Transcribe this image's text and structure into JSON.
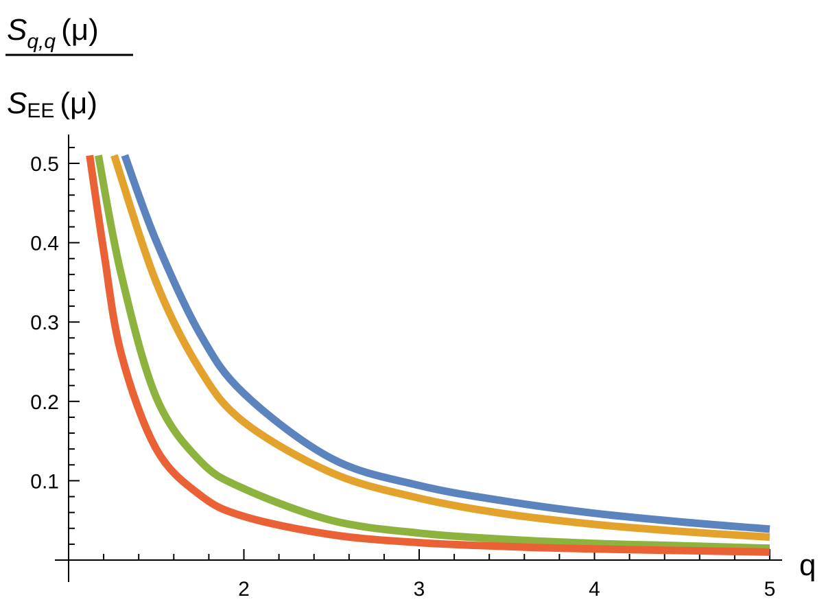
{
  "chart_data": {
    "type": "line",
    "title": "",
    "xlabel": "q",
    "ylabel": {
      "numerator": {
        "symbol": "S",
        "subscript": "q,q",
        "argument": "(μ)"
      },
      "denominator": {
        "symbol": "S",
        "subscript": "EE",
        "argument": "(μ)"
      }
    },
    "xlim": [
      1.0,
      5.0
    ],
    "ylim": [
      0,
      0.53
    ],
    "x_ticks": [
      2,
      3,
      4,
      5
    ],
    "x_tick_labels": [
      "2",
      "3",
      "4",
      "5"
    ],
    "y_ticks": [
      0.1,
      0.2,
      0.3,
      0.4,
      0.5
    ],
    "y_tick_labels": [
      "0.1",
      "0.2",
      "0.3",
      "0.4",
      "0.5"
    ],
    "grid": false,
    "legend": "none",
    "series": [
      {
        "color": "#5b83bd",
        "points": [
          [
            1.32,
            0.51
          ],
          [
            1.5,
            0.402
          ],
          [
            1.75,
            0.285
          ],
          [
            2.0,
            0.21
          ],
          [
            2.5,
            0.128
          ],
          [
            3.0,
            0.094
          ],
          [
            3.5,
            0.074
          ],
          [
            4.0,
            0.059
          ],
          [
            4.5,
            0.048
          ],
          [
            5.0,
            0.039
          ]
        ]
      },
      {
        "color": "#e3a22b",
        "points": [
          [
            1.26,
            0.51
          ],
          [
            1.5,
            0.35
          ],
          [
            1.75,
            0.24
          ],
          [
            2.0,
            0.174
          ],
          [
            2.5,
            0.11
          ],
          [
            3.0,
            0.078
          ],
          [
            3.5,
            0.058
          ],
          [
            4.0,
            0.045
          ],
          [
            4.5,
            0.036
          ],
          [
            5.0,
            0.029
          ]
        ]
      },
      {
        "color": "#8db23e",
        "points": [
          [
            1.17,
            0.51
          ],
          [
            1.3,
            0.36
          ],
          [
            1.5,
            0.205
          ],
          [
            1.75,
            0.125
          ],
          [
            2.0,
            0.09
          ],
          [
            2.5,
            0.05
          ],
          [
            3.0,
            0.034
          ],
          [
            3.5,
            0.026
          ],
          [
            4.0,
            0.021
          ],
          [
            4.5,
            0.018
          ],
          [
            5.0,
            0.015
          ]
        ]
      },
      {
        "color": "#ea6135",
        "points": [
          [
            1.12,
            0.51
          ],
          [
            1.2,
            0.39
          ],
          [
            1.3,
            0.26
          ],
          [
            1.5,
            0.14
          ],
          [
            1.75,
            0.082
          ],
          [
            2.0,
            0.055
          ],
          [
            2.5,
            0.032
          ],
          [
            3.0,
            0.022
          ],
          [
            3.5,
            0.017
          ],
          [
            4.0,
            0.014
          ],
          [
            4.5,
            0.012
          ],
          [
            5.0,
            0.01
          ]
        ]
      }
    ]
  }
}
